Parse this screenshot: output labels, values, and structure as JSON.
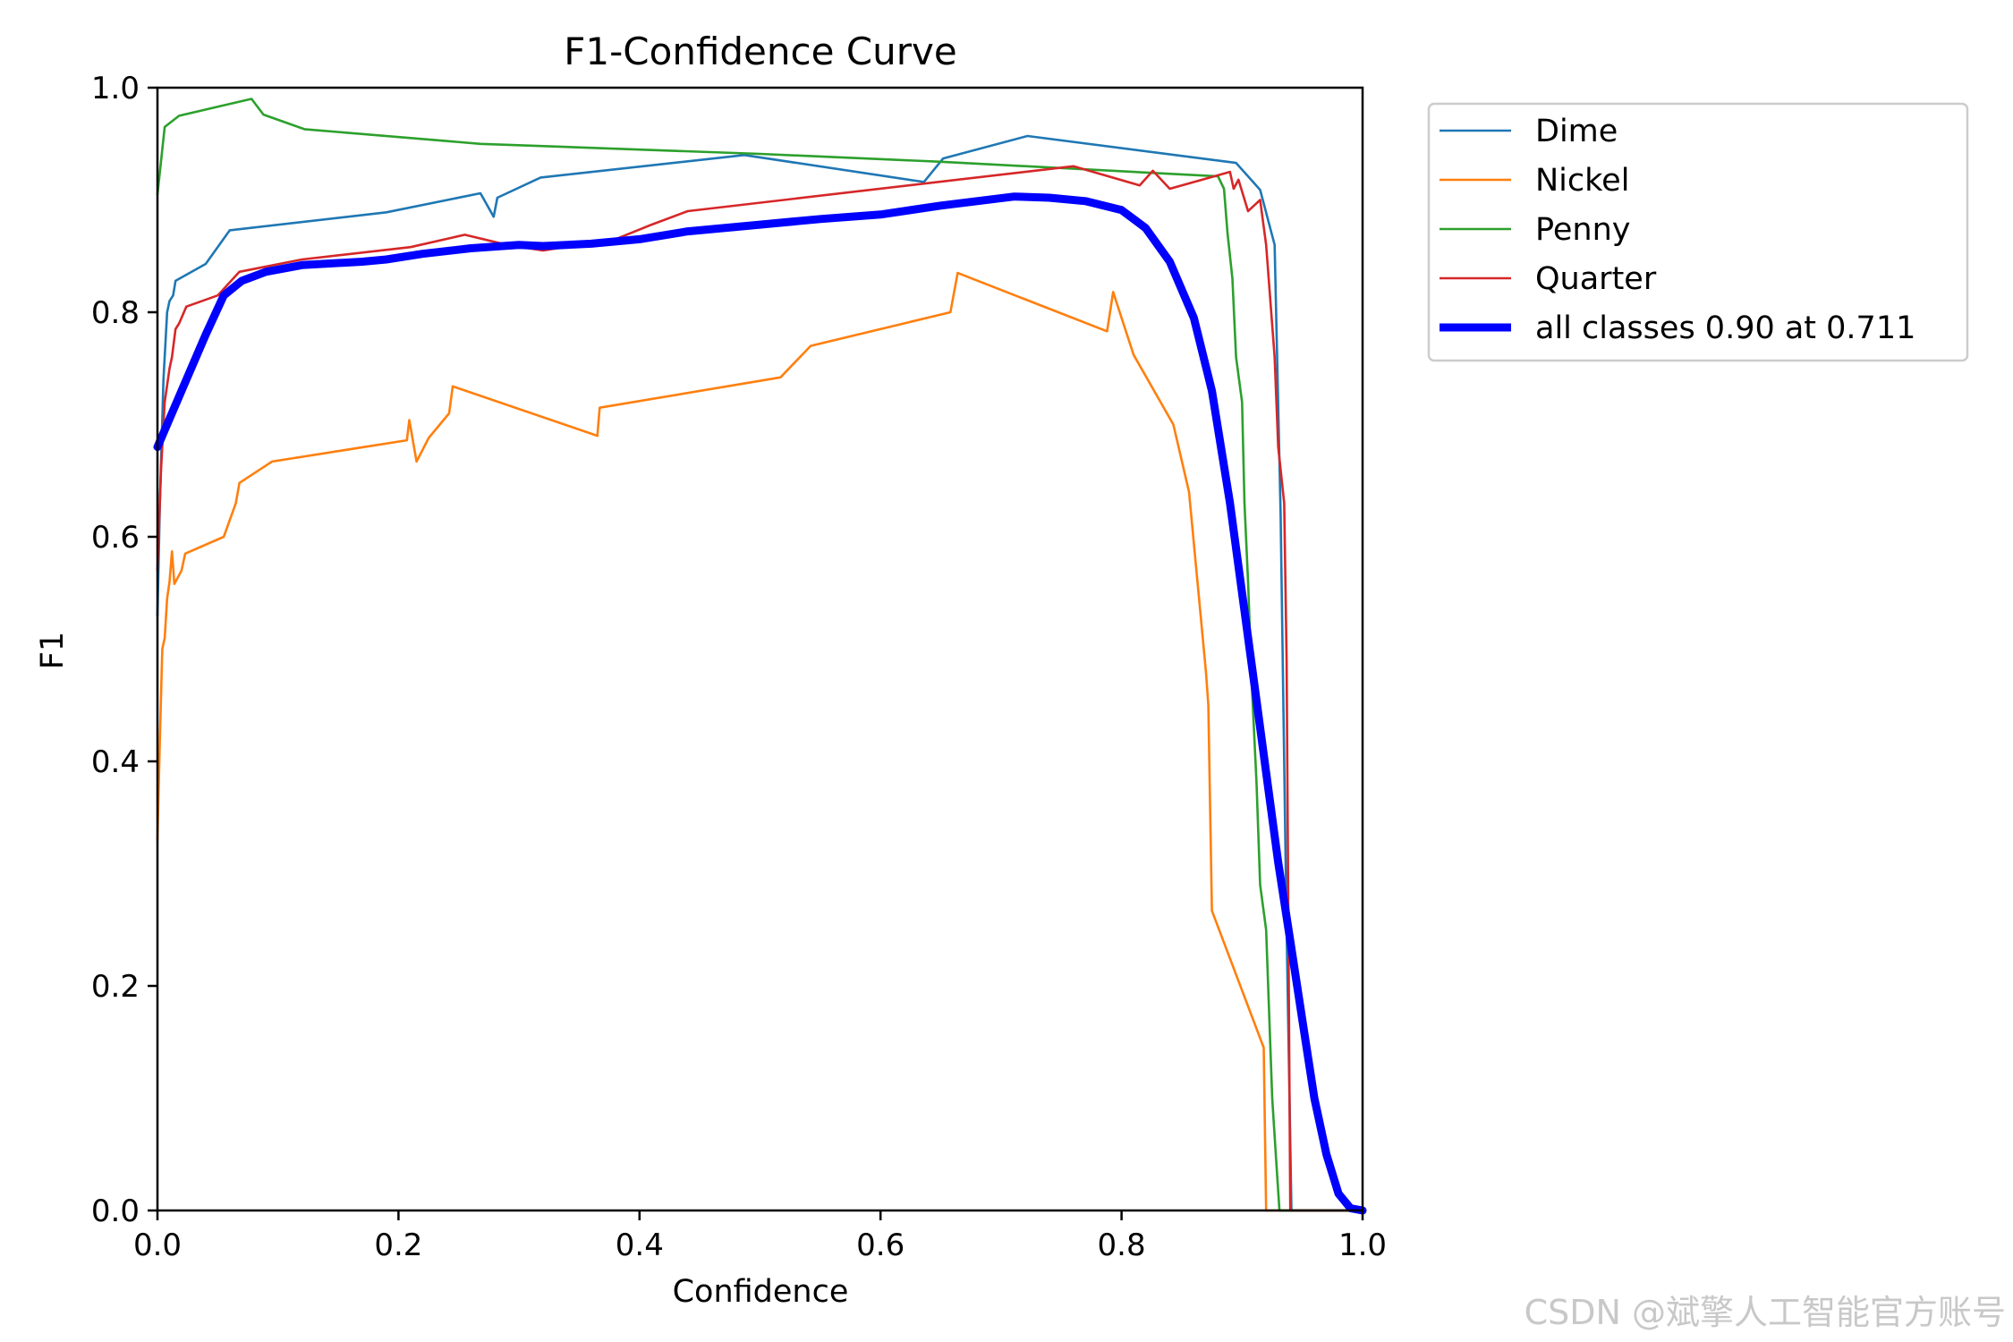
{
  "chart_data": {
    "type": "line",
    "title": "F1-Confidence Curve",
    "xlabel": "Confidence",
    "ylabel": "F1",
    "xlim": [
      0.0,
      1.0
    ],
    "ylim": [
      0.0,
      1.0
    ],
    "xticks": [
      "0.0",
      "0.2",
      "0.4",
      "0.6",
      "0.8",
      "1.0"
    ],
    "yticks": [
      "0.0",
      "0.2",
      "0.4",
      "0.6",
      "0.8",
      "1.0"
    ],
    "grid": false,
    "legend_position": "outside-top-right",
    "series": [
      {
        "name": "Dime",
        "color": "#1f77b4",
        "points": [
          [
            0.0,
            0.53
          ],
          [
            0.002,
            0.63
          ],
          [
            0.005,
            0.74
          ],
          [
            0.008,
            0.8
          ],
          [
            0.01,
            0.81
          ],
          [
            0.013,
            0.815
          ],
          [
            0.015,
            0.828
          ],
          [
            0.04,
            0.843
          ],
          [
            0.06,
            0.873
          ],
          [
            0.19,
            0.889
          ],
          [
            0.268,
            0.906
          ],
          [
            0.279,
            0.885
          ],
          [
            0.282,
            0.902
          ],
          [
            0.318,
            0.92
          ],
          [
            0.487,
            0.94
          ],
          [
            0.636,
            0.916
          ],
          [
            0.652,
            0.937
          ],
          [
            0.722,
            0.957
          ],
          [
            0.895,
            0.933
          ],
          [
            0.915,
            0.909
          ],
          [
            0.927,
            0.86
          ],
          [
            0.932,
            0.62
          ],
          [
            0.937,
            0.25
          ],
          [
            0.941,
            0.0
          ],
          [
            1.0,
            0.0
          ]
        ]
      },
      {
        "name": "Nickel",
        "color": "#ff7f0e",
        "points": [
          [
            0.0,
            0.33
          ],
          [
            0.002,
            0.42
          ],
          [
            0.004,
            0.5
          ],
          [
            0.006,
            0.51
          ],
          [
            0.008,
            0.545
          ],
          [
            0.01,
            0.56
          ],
          [
            0.012,
            0.587
          ],
          [
            0.014,
            0.558
          ],
          [
            0.02,
            0.57
          ],
          [
            0.023,
            0.585
          ],
          [
            0.055,
            0.6
          ],
          [
            0.065,
            0.63
          ],
          [
            0.068,
            0.648
          ],
          [
            0.095,
            0.667
          ],
          [
            0.207,
            0.686
          ],
          [
            0.209,
            0.704
          ],
          [
            0.215,
            0.667
          ],
          [
            0.225,
            0.688
          ],
          [
            0.242,
            0.71
          ],
          [
            0.245,
            0.734
          ],
          [
            0.365,
            0.69
          ],
          [
            0.367,
            0.715
          ],
          [
            0.517,
            0.742
          ],
          [
            0.542,
            0.77
          ],
          [
            0.658,
            0.8
          ],
          [
            0.664,
            0.835
          ],
          [
            0.788,
            0.783
          ],
          [
            0.793,
            0.818
          ],
          [
            0.81,
            0.762
          ],
          [
            0.843,
            0.7
          ],
          [
            0.856,
            0.64
          ],
          [
            0.87,
            0.48
          ],
          [
            0.872,
            0.45
          ],
          [
            0.875,
            0.267
          ],
          [
            0.918,
            0.145
          ],
          [
            0.92,
            0.0
          ],
          [
            1.0,
            0.0
          ]
        ]
      },
      {
        "name": "Penny",
        "color": "#2ca02c",
        "points": [
          [
            0.0,
            0.905
          ],
          [
            0.006,
            0.965
          ],
          [
            0.018,
            0.975
          ],
          [
            0.078,
            0.99
          ],
          [
            0.088,
            0.976
          ],
          [
            0.122,
            0.963
          ],
          [
            0.268,
            0.95
          ],
          [
            0.5,
            0.941
          ],
          [
            0.65,
            0.934
          ],
          [
            0.88,
            0.921
          ],
          [
            0.885,
            0.91
          ],
          [
            0.888,
            0.87
          ],
          [
            0.892,
            0.83
          ],
          [
            0.895,
            0.76
          ],
          [
            0.9,
            0.72
          ],
          [
            0.902,
            0.63
          ],
          [
            0.905,
            0.56
          ],
          [
            0.908,
            0.47
          ],
          [
            0.912,
            0.38
          ],
          [
            0.915,
            0.29
          ],
          [
            0.92,
            0.25
          ],
          [
            0.925,
            0.1
          ],
          [
            0.928,
            0.05
          ],
          [
            0.931,
            0.0
          ],
          [
            1.0,
            0.0
          ]
        ]
      },
      {
        "name": "Quarter",
        "color": "#d62728",
        "points": [
          [
            0.0,
            0.57
          ],
          [
            0.003,
            0.66
          ],
          [
            0.006,
            0.72
          ],
          [
            0.01,
            0.75
          ],
          [
            0.012,
            0.76
          ],
          [
            0.015,
            0.785
          ],
          [
            0.018,
            0.79
          ],
          [
            0.024,
            0.805
          ],
          [
            0.05,
            0.815
          ],
          [
            0.068,
            0.836
          ],
          [
            0.12,
            0.847
          ],
          [
            0.21,
            0.858
          ],
          [
            0.255,
            0.869
          ],
          [
            0.29,
            0.86
          ],
          [
            0.32,
            0.855
          ],
          [
            0.38,
            0.865
          ],
          [
            0.41,
            0.878
          ],
          [
            0.44,
            0.89
          ],
          [
            0.76,
            0.93
          ],
          [
            0.815,
            0.913
          ],
          [
            0.826,
            0.926
          ],
          [
            0.84,
            0.91
          ],
          [
            0.89,
            0.925
          ],
          [
            0.893,
            0.91
          ],
          [
            0.897,
            0.918
          ],
          [
            0.905,
            0.89
          ],
          [
            0.915,
            0.9
          ],
          [
            0.92,
            0.86
          ],
          [
            0.927,
            0.76
          ],
          [
            0.93,
            0.68
          ],
          [
            0.935,
            0.63
          ],
          [
            0.937,
            0.49
          ],
          [
            0.94,
            0.0
          ],
          [
            0.945,
            0.0
          ],
          [
            1.0,
            0.0
          ]
        ]
      },
      {
        "name": "all classes 0.90 at 0.711",
        "color": "#0000ff",
        "points": [
          [
            0.0,
            0.68
          ],
          [
            0.02,
            0.73
          ],
          [
            0.04,
            0.78
          ],
          [
            0.055,
            0.815
          ],
          [
            0.07,
            0.828
          ],
          [
            0.09,
            0.836
          ],
          [
            0.12,
            0.842
          ],
          [
            0.17,
            0.845
          ],
          [
            0.19,
            0.847
          ],
          [
            0.22,
            0.852
          ],
          [
            0.26,
            0.857
          ],
          [
            0.3,
            0.86
          ],
          [
            0.32,
            0.859
          ],
          [
            0.36,
            0.861
          ],
          [
            0.4,
            0.865
          ],
          [
            0.44,
            0.872
          ],
          [
            0.5,
            0.878
          ],
          [
            0.55,
            0.883
          ],
          [
            0.6,
            0.887
          ],
          [
            0.65,
            0.895
          ],
          [
            0.711,
            0.903
          ],
          [
            0.74,
            0.902
          ],
          [
            0.77,
            0.899
          ],
          [
            0.8,
            0.891
          ],
          [
            0.82,
            0.875
          ],
          [
            0.84,
            0.845
          ],
          [
            0.86,
            0.795
          ],
          [
            0.875,
            0.73
          ],
          [
            0.89,
            0.63
          ],
          [
            0.9,
            0.55
          ],
          [
            0.91,
            0.47
          ],
          [
            0.92,
            0.39
          ],
          [
            0.93,
            0.31
          ],
          [
            0.94,
            0.24
          ],
          [
            0.95,
            0.17
          ],
          [
            0.96,
            0.1
          ],
          [
            0.97,
            0.05
          ],
          [
            0.98,
            0.015
          ],
          [
            0.99,
            0.002
          ],
          [
            1.0,
            0.0
          ]
        ]
      }
    ]
  },
  "watermark": "CSDN @斌擎人工智能官方账号"
}
